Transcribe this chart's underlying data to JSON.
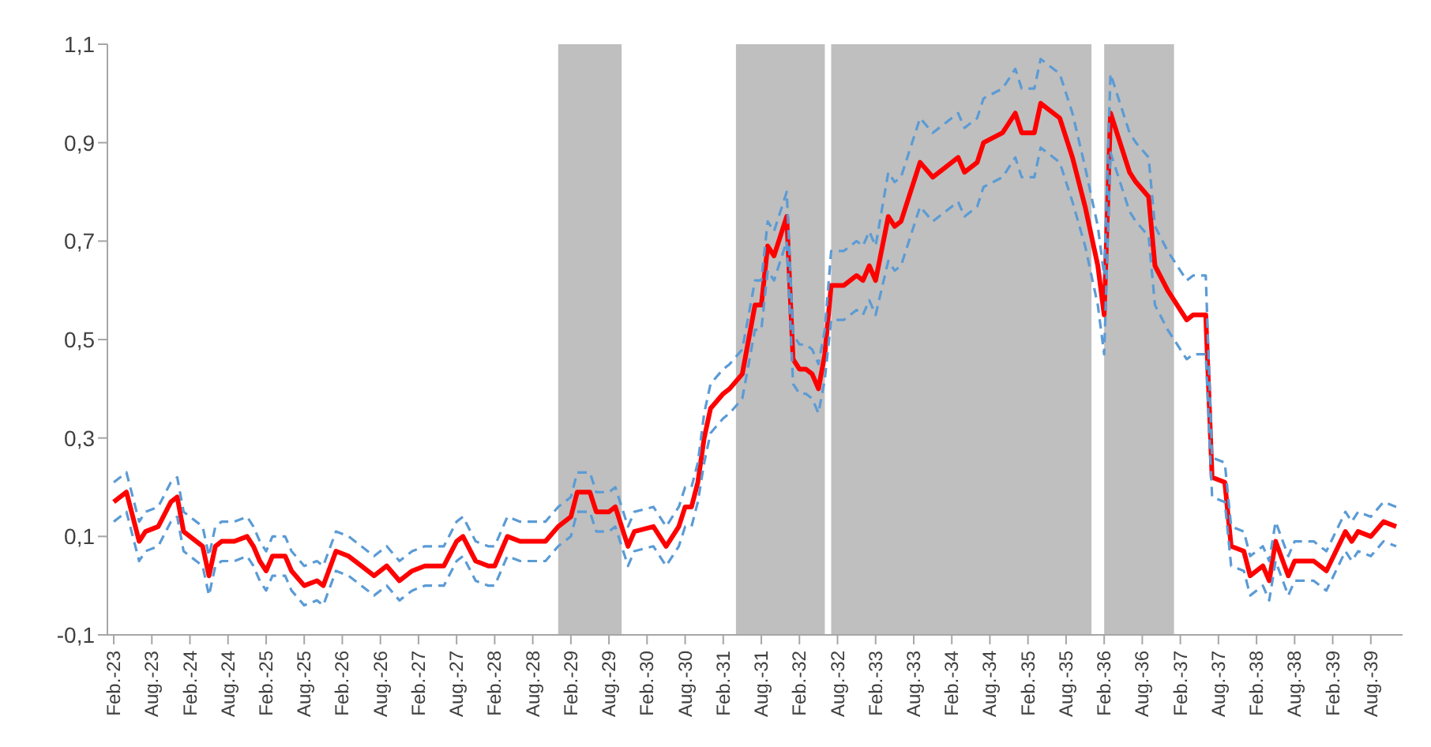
{
  "chart_data": {
    "type": "line",
    "xlim": [
      "1923-01",
      "1940-01"
    ],
    "ylim": [
      -0.1,
      1.1
    ],
    "yticks": [
      {
        "value": -0.1,
        "label": "-0,1"
      },
      {
        "value": 0.1,
        "label": "0,1"
      },
      {
        "value": 0.3,
        "label": "0,3"
      },
      {
        "value": 0.5,
        "label": "0,5"
      },
      {
        "value": 0.7,
        "label": "0,7"
      },
      {
        "value": 0.9,
        "label": "0,9"
      },
      {
        "value": 1.1,
        "label": "1,1"
      }
    ],
    "xticks": [
      {
        "value": "1923-02",
        "label": "Feb.-23"
      },
      {
        "value": "1923-08",
        "label": "Aug.-23"
      },
      {
        "value": "1924-02",
        "label": "Feb.-24"
      },
      {
        "value": "1924-08",
        "label": "Aug.-24"
      },
      {
        "value": "1925-02",
        "label": "Feb.-25"
      },
      {
        "value": "1925-08",
        "label": "Aug.-25"
      },
      {
        "value": "1926-02",
        "label": "Feb.-26"
      },
      {
        "value": "1926-08",
        "label": "Aug.-26"
      },
      {
        "value": "1927-02",
        "label": "Feb.-27"
      },
      {
        "value": "1927-08",
        "label": "Aug.-27"
      },
      {
        "value": "1928-02",
        "label": "Feb.-28"
      },
      {
        "value": "1928-08",
        "label": "Aug.-28"
      },
      {
        "value": "1929-02",
        "label": "Feb.-29"
      },
      {
        "value": "1929-08",
        "label": "Aug.-29"
      },
      {
        "value": "1930-02",
        "label": "Feb.-30"
      },
      {
        "value": "1930-08",
        "label": "Aug.-30"
      },
      {
        "value": "1931-02",
        "label": "Feb.-31"
      },
      {
        "value": "1931-08",
        "label": "Aug.-31"
      },
      {
        "value": "1932-02",
        "label": "Feb.-32"
      },
      {
        "value": "1932-08",
        "label": "Aug.-32"
      },
      {
        "value": "1933-02",
        "label": "Feb.-33"
      },
      {
        "value": "1933-08",
        "label": "Aug.-33"
      },
      {
        "value": "1934-02",
        "label": "Feb.-34"
      },
      {
        "value": "1934-08",
        "label": "Aug.-34"
      },
      {
        "value": "1935-02",
        "label": "Feb.-35"
      },
      {
        "value": "1935-08",
        "label": "Aug.-35"
      },
      {
        "value": "1936-02",
        "label": "Feb.-36"
      },
      {
        "value": "1936-08",
        "label": "Aug.-36"
      },
      {
        "value": "1937-02",
        "label": "Feb.-37"
      },
      {
        "value": "1937-08",
        "label": "Aug.-37"
      },
      {
        "value": "1938-02",
        "label": "Feb.-38"
      },
      {
        "value": "1938-08",
        "label": "Aug.-38"
      },
      {
        "value": "1939-02",
        "label": "Feb.-39"
      },
      {
        "value": "1939-08",
        "label": "Aug.-39"
      }
    ],
    "bands": [
      {
        "axis": "x",
        "from": "1928-12",
        "to": "1929-10",
        "color": "#bfbfbf"
      },
      {
        "axis": "x",
        "from": "1931-04",
        "to": "1932-06",
        "color": "#bfbfbf"
      },
      {
        "axis": "x",
        "from": "1932-07",
        "to": "1935-12",
        "color": "#bfbfbf"
      },
      {
        "axis": "x",
        "from": "1936-02",
        "to": "1937-01",
        "color": "#bfbfbf"
      }
    ],
    "x": [
      "1923-02",
      "1923-04",
      "1923-06",
      "1923-07",
      "1923-09",
      "1923-11",
      "1923-12",
      "1924-01",
      "1924-03",
      "1924-04",
      "1924-05",
      "1924-06",
      "1924-07",
      "1924-09",
      "1924-11",
      "1924-12",
      "1925-01",
      "1925-02",
      "1925-03",
      "1925-05",
      "1925-06",
      "1925-08",
      "1925-10",
      "1925-11",
      "1926-01",
      "1926-03",
      "1926-05",
      "1926-07",
      "1926-09",
      "1926-11",
      "1927-01",
      "1927-03",
      "1927-05",
      "1927-06",
      "1927-08",
      "1927-09",
      "1927-11",
      "1928-01",
      "1928-02",
      "1928-04",
      "1928-06",
      "1928-08",
      "1928-10",
      "1928-12",
      "1929-02",
      "1929-03",
      "1929-05",
      "1929-06",
      "1929-08",
      "1929-09",
      "1929-11",
      "1929-12",
      "1930-03",
      "1930-05",
      "1930-07",
      "1930-08",
      "1930-09",
      "1930-10",
      "1930-11",
      "1930-12",
      "1931-02",
      "1931-03",
      "1931-05",
      "1931-07",
      "1931-08",
      "1931-09",
      "1931-10",
      "1931-12",
      "1932-01",
      "1932-02",
      "1932-03",
      "1932-04",
      "1932-05",
      "1932-06",
      "1932-07",
      "1932-09",
      "1932-11",
      "1932-12",
      "1933-01",
      "1933-02",
      "1933-04",
      "1933-05",
      "1933-06",
      "1933-09",
      "1933-11",
      "1934-01",
      "1934-03",
      "1934-04",
      "1934-06",
      "1934-07",
      "1934-10",
      "1934-12",
      "1935-01",
      "1935-03",
      "1935-04",
      "1935-05",
      "1935-07",
      "1935-09",
      "1935-11",
      "1936-01",
      "1936-02",
      "1936-03",
      "1936-06",
      "1936-07",
      "1936-09",
      "1936-10",
      "1936-12",
      "1937-03",
      "1937-04",
      "1937-06",
      "1937-07",
      "1937-09",
      "1937-10",
      "1937-12",
      "1938-01",
      "1938-03",
      "1938-04",
      "1938-05",
      "1938-07",
      "1938-08",
      "1938-11",
      "1939-01",
      "1939-04",
      "1939-05",
      "1939-06",
      "1939-08",
      "1939-10",
      "1939-12"
    ],
    "series": [
      {
        "color": "#ff0000",
        "values": [
          0.17,
          0.19,
          0.09,
          0.11,
          0.12,
          0.17,
          0.18,
          0.11,
          0.09,
          0.08,
          0.02,
          0.08,
          0.09,
          0.09,
          0.1,
          0.08,
          0.05,
          0.03,
          0.06,
          0.06,
          0.03,
          0.0,
          0.01,
          0.0,
          0.07,
          0.06,
          0.04,
          0.02,
          0.04,
          0.01,
          0.03,
          0.04,
          0.04,
          0.04,
          0.09,
          0.1,
          0.05,
          0.04,
          0.04,
          0.1,
          0.09,
          0.09,
          0.09,
          0.12,
          0.14,
          0.19,
          0.19,
          0.15,
          0.15,
          0.16,
          0.08,
          0.11,
          0.12,
          0.08,
          0.12,
          0.16,
          0.16,
          0.21,
          0.3,
          0.36,
          0.39,
          0.4,
          0.43,
          0.57,
          0.57,
          0.69,
          0.67,
          0.75,
          0.46,
          0.44,
          0.44,
          0.43,
          0.4,
          0.47,
          0.61,
          0.61,
          0.63,
          0.62,
          0.65,
          0.62,
          0.75,
          0.73,
          0.74,
          0.86,
          0.83,
          0.85,
          0.87,
          0.84,
          0.86,
          0.9,
          0.92,
          0.96,
          0.92,
          0.92,
          0.98,
          0.97,
          0.95,
          0.87,
          0.77,
          0.65,
          0.55,
          0.96,
          0.84,
          0.82,
          0.79,
          0.65,
          0.6,
          0.54,
          0.55,
          0.55,
          0.22,
          0.21,
          0.08,
          0.07,
          0.02,
          0.04,
          0.01,
          0.09,
          0.02,
          0.05,
          0.05,
          0.03,
          0.11,
          0.09,
          0.11,
          0.1,
          0.13,
          0.12
        ],
        "line_style": "solid"
      },
      {
        "color": "#5b9bd5",
        "line_style": "dashed",
        "values": [
          0.13,
          0.15,
          0.05,
          0.07,
          0.08,
          0.13,
          0.14,
          0.07,
          0.05,
          0.04,
          -0.02,
          0.04,
          0.05,
          0.05,
          0.06,
          0.04,
          0.01,
          -0.01,
          0.02,
          0.02,
          -0.01,
          -0.04,
          -0.03,
          -0.04,
          0.03,
          0.02,
          0.0,
          -0.02,
          0.0,
          -0.03,
          -0.01,
          0.0,
          0.0,
          0.0,
          0.05,
          0.06,
          0.01,
          0.0,
          0.0,
          0.06,
          0.05,
          0.05,
          0.05,
          0.08,
          0.1,
          0.15,
          0.15,
          0.11,
          0.11,
          0.12,
          0.04,
          0.07,
          0.08,
          0.04,
          0.08,
          0.12,
          0.12,
          0.17,
          0.25,
          0.31,
          0.34,
          0.35,
          0.38,
          0.52,
          0.52,
          0.64,
          0.62,
          0.7,
          0.41,
          0.39,
          0.39,
          0.38,
          0.35,
          0.42,
          0.54,
          0.54,
          0.56,
          0.55,
          0.58,
          0.55,
          0.66,
          0.64,
          0.65,
          0.77,
          0.74,
          0.76,
          0.78,
          0.75,
          0.77,
          0.81,
          0.83,
          0.87,
          0.83,
          0.83,
          0.89,
          0.88,
          0.86,
          0.78,
          0.69,
          0.57,
          0.47,
          0.88,
          0.76,
          0.74,
          0.71,
          0.57,
          0.52,
          0.46,
          0.47,
          0.47,
          0.18,
          0.17,
          0.04,
          0.03,
          -0.02,
          0.0,
          -0.03,
          0.05,
          -0.02,
          0.01,
          0.01,
          -0.01,
          0.07,
          0.05,
          0.07,
          0.06,
          0.09,
          0.08
        ]
      },
      {
        "color": "#5b9bd5",
        "line_style": "dashed",
        "values": [
          0.21,
          0.23,
          0.13,
          0.15,
          0.16,
          0.21,
          0.22,
          0.15,
          0.13,
          0.12,
          0.06,
          0.12,
          0.13,
          0.13,
          0.14,
          0.12,
          0.09,
          0.07,
          0.1,
          0.1,
          0.07,
          0.04,
          0.05,
          0.04,
          0.11,
          0.1,
          0.08,
          0.06,
          0.08,
          0.05,
          0.07,
          0.08,
          0.08,
          0.08,
          0.13,
          0.14,
          0.09,
          0.08,
          0.08,
          0.14,
          0.13,
          0.13,
          0.13,
          0.16,
          0.18,
          0.23,
          0.23,
          0.19,
          0.19,
          0.2,
          0.12,
          0.15,
          0.16,
          0.12,
          0.16,
          0.2,
          0.2,
          0.25,
          0.35,
          0.41,
          0.44,
          0.45,
          0.48,
          0.62,
          0.62,
          0.74,
          0.72,
          0.8,
          0.51,
          0.49,
          0.49,
          0.48,
          0.45,
          0.52,
          0.68,
          0.68,
          0.7,
          0.69,
          0.72,
          0.69,
          0.84,
          0.82,
          0.83,
          0.95,
          0.92,
          0.94,
          0.96,
          0.93,
          0.95,
          0.99,
          1.01,
          1.05,
          1.01,
          1.01,
          1.07,
          1.06,
          1.04,
          0.96,
          0.85,
          0.73,
          0.63,
          1.04,
          0.92,
          0.9,
          0.87,
          0.73,
          0.68,
          0.62,
          0.63,
          0.63,
          0.26,
          0.25,
          0.12,
          0.11,
          0.06,
          0.08,
          0.05,
          0.13,
          0.06,
          0.09,
          0.09,
          0.07,
          0.15,
          0.13,
          0.15,
          0.14,
          0.17,
          0.16
        ]
      }
    ]
  }
}
